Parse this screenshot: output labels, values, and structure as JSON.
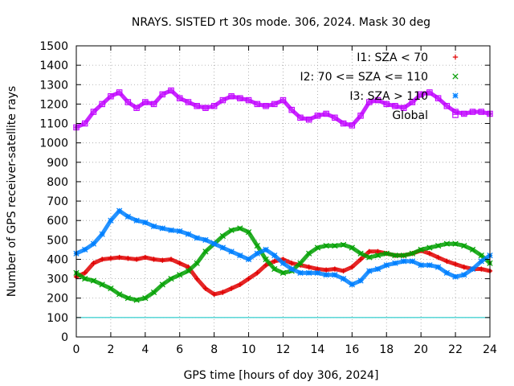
{
  "chart_data": {
    "type": "scatter",
    "title": "NRAYS. SISTED rt 30s mode. 306, 2024. Mask 30 deg",
    "xlabel": "GPS time [hours of doy 306, 2024]",
    "ylabel": "Number of GPS receiver-satellite rays",
    "xlim": [
      0,
      24
    ],
    "ylim": [
      0,
      1500
    ],
    "xticks": [
      0,
      2,
      4,
      6,
      8,
      10,
      12,
      14,
      16,
      18,
      20,
      22,
      24
    ],
    "yticks": [
      0,
      100,
      200,
      300,
      400,
      500,
      600,
      700,
      800,
      900,
      1000,
      1100,
      1200,
      1300,
      1400,
      1500
    ],
    "grid": true,
    "legend_position": "top-right",
    "reference_line": {
      "y": 100,
      "color": "#00c0c0"
    },
    "series": [
      {
        "name": "I1: SZA < 70",
        "marker": "+",
        "color": "#e00000",
        "x": [
          0,
          0.5,
          1,
          1.5,
          2,
          2.5,
          3,
          3.5,
          4,
          4.5,
          5,
          5.5,
          6,
          6.5,
          7,
          7.5,
          8,
          8.5,
          9,
          9.5,
          10,
          10.5,
          11,
          11.5,
          12,
          12.5,
          13,
          13.5,
          14,
          14.5,
          15,
          15.5,
          16,
          16.5,
          17,
          17.5,
          18,
          18.5,
          19,
          19.5,
          20,
          20.5,
          21,
          21.5,
          22,
          22.5,
          23,
          23.5,
          24
        ],
        "y": [
          310,
          330,
          380,
          400,
          405,
          410,
          405,
          400,
          410,
          400,
          395,
          400,
          380,
          360,
          300,
          250,
          220,
          230,
          250,
          270,
          300,
          330,
          370,
          390,
          400,
          380,
          370,
          360,
          350,
          345,
          350,
          340,
          360,
          400,
          440,
          440,
          430,
          420,
          420,
          430,
          445,
          430,
          410,
          390,
          375,
          360,
          350,
          350,
          340
        ]
      },
      {
        "name": "I2: 70 <= SZA <= 110",
        "marker": "x",
        "color": "#00a000",
        "x": [
          0,
          0.5,
          1,
          1.5,
          2,
          2.5,
          3,
          3.5,
          4,
          4.5,
          5,
          5.5,
          6,
          6.5,
          7,
          7.5,
          8,
          8.5,
          9,
          9.5,
          10,
          10.5,
          11,
          11.5,
          12,
          12.5,
          13,
          13.5,
          14,
          14.5,
          15,
          15.5,
          16,
          16.5,
          17,
          17.5,
          18,
          18.5,
          19,
          19.5,
          20,
          20.5,
          21,
          21.5,
          22,
          22.5,
          23,
          23.5,
          24
        ],
        "y": [
          330,
          300,
          290,
          270,
          250,
          220,
          200,
          190,
          200,
          230,
          270,
          300,
          320,
          340,
          380,
          440,
          480,
          520,
          550,
          560,
          540,
          470,
          400,
          350,
          330,
          340,
          380,
          430,
          460,
          470,
          470,
          475,
          460,
          430,
          410,
          420,
          430,
          420,
          420,
          430,
          450,
          460,
          470,
          480,
          480,
          470,
          450,
          420,
          380
        ]
      },
      {
        "name": "I3: SZA > 110",
        "marker": "*",
        "color": "#0080ff",
        "x": [
          0,
          0.5,
          1,
          1.5,
          2,
          2.5,
          3,
          3.5,
          4,
          4.5,
          5,
          5.5,
          6,
          6.5,
          7,
          7.5,
          8,
          8.5,
          9,
          9.5,
          10,
          10.5,
          11,
          11.5,
          12,
          12.5,
          13,
          13.5,
          14,
          14.5,
          15,
          15.5,
          16,
          16.5,
          17,
          17.5,
          18,
          18.5,
          19,
          19.5,
          20,
          20.5,
          21,
          21.5,
          22,
          22.5,
          23,
          23.5,
          24
        ],
        "y": [
          430,
          450,
          480,
          530,
          600,
          650,
          620,
          600,
          590,
          570,
          560,
          550,
          545,
          530,
          510,
          500,
          480,
          460,
          440,
          420,
          400,
          430,
          450,
          420,
          380,
          350,
          330,
          330,
          330,
          320,
          320,
          300,
          270,
          290,
          340,
          350,
          370,
          380,
          390,
          390,
          370,
          370,
          360,
          330,
          310,
          320,
          350,
          390,
          420
        ]
      },
      {
        "name": "Global",
        "marker": "square",
        "color": "#c000ff",
        "x": [
          0,
          0.5,
          1,
          1.5,
          2,
          2.5,
          3,
          3.5,
          4,
          4.5,
          5,
          5.5,
          6,
          6.5,
          7,
          7.5,
          8,
          8.5,
          9,
          9.5,
          10,
          10.5,
          11,
          11.5,
          12,
          12.5,
          13,
          13.5,
          14,
          14.5,
          15,
          15.5,
          16,
          16.5,
          17,
          17.5,
          18,
          18.5,
          19,
          19.5,
          20,
          20.5,
          21,
          21.5,
          22,
          22.5,
          23,
          23.5,
          24
        ],
        "y": [
          1080,
          1100,
          1160,
          1200,
          1240,
          1260,
          1210,
          1180,
          1210,
          1200,
          1250,
          1270,
          1230,
          1210,
          1190,
          1180,
          1190,
          1220,
          1240,
          1230,
          1220,
          1200,
          1190,
          1200,
          1220,
          1170,
          1130,
          1120,
          1140,
          1150,
          1130,
          1100,
          1090,
          1140,
          1210,
          1220,
          1200,
          1190,
          1180,
          1210,
          1250,
          1260,
          1230,
          1190,
          1160,
          1150,
          1160,
          1160,
          1150
        ]
      }
    ]
  }
}
